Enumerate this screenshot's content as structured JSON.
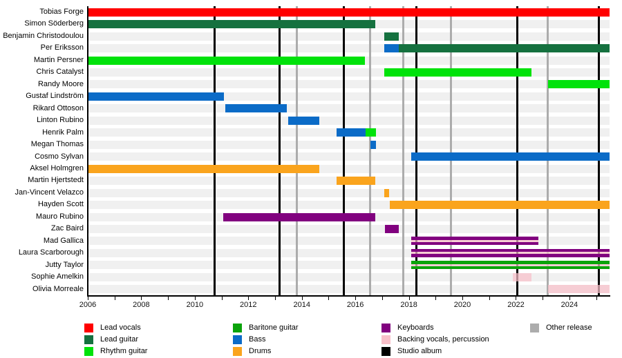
{
  "chart_data": {
    "type": "timeline",
    "title": "",
    "x_domain": [
      2006,
      2025.5
    ],
    "x_tick_years": [
      2006,
      2008,
      2010,
      2012,
      2014,
      2016,
      2018,
      2020,
      2022,
      2024
    ],
    "x_tick_labels": [
      "2006",
      "2008",
      "2010",
      "2012",
      "2014",
      "2016",
      "2018",
      "2020",
      "2022",
      "2024"
    ],
    "minor_tick_step": 1,
    "grid": "off",
    "legend_position": "bottom",
    "colors": {
      "lead_vocals": "#FF0000",
      "lead_guitar": "#15713F",
      "rhythm_guitar": "#00E20B",
      "baritone_guitar": "#0BA30B",
      "bass": "#0B6BC7",
      "drums": "#FAA41D",
      "keyboards": "#81017F",
      "backing": "#F8BFC9",
      "studio_album": "#000000",
      "other_release": "#ACACAC",
      "row_band": "#F0F0F0"
    },
    "members": [
      {
        "name": "Tobias Forge",
        "segments": [
          {
            "role": "lead_vocals",
            "start": 2006,
            "end": 2025.5
          }
        ]
      },
      {
        "name": "Simon Söderberg",
        "segments": [
          {
            "role": "lead_guitar",
            "start": 2006,
            "end": 2016.74
          }
        ]
      },
      {
        "name": "Benjamin Christodoulou",
        "segments": [
          {
            "role": "lead_guitar",
            "start": 2017.08,
            "end": 2017.62
          }
        ]
      },
      {
        "name": "Per Eriksson",
        "segments": [
          {
            "role": "bass",
            "start": 2017.08,
            "end": 2017.62
          },
          {
            "role": "lead_guitar",
            "start": 2017.62,
            "end": 2025.5
          }
        ]
      },
      {
        "name": "Martin Persner",
        "segments": [
          {
            "role": "rhythm_guitar",
            "start": 2006,
            "end": 2016.36
          }
        ]
      },
      {
        "name": "Chris Catalyst",
        "segments": [
          {
            "role": "rhythm_guitar",
            "start": 2017.08,
            "end": 2022.58
          }
        ]
      },
      {
        "name": "Randy Moore",
        "segments": [
          {
            "role": "rhythm_guitar",
            "start": 2023.2,
            "end": 2025.5
          }
        ]
      },
      {
        "name": "Gustaf Lindström",
        "segments": [
          {
            "role": "bass",
            "start": 2006,
            "end": 2011.1
          }
        ]
      },
      {
        "name": "Rikard Ottoson",
        "segments": [
          {
            "role": "bass",
            "start": 2011.15,
            "end": 2013.45
          }
        ]
      },
      {
        "name": "Linton Rubino",
        "segments": [
          {
            "role": "bass",
            "start": 2013.5,
            "end": 2014.65
          }
        ]
      },
      {
        "name": "Henrik Palm",
        "segments": [
          {
            "role": "bass",
            "start": 2015.3,
            "end": 2016.38
          },
          {
            "role": "rhythm_guitar",
            "start": 2016.38,
            "end": 2016.77
          }
        ]
      },
      {
        "name": "Megan Thomas",
        "segments": [
          {
            "role": "bass",
            "start": 2016.56,
            "end": 2016.77
          }
        ]
      },
      {
        "name": "Cosmo Sylvan",
        "segments": [
          {
            "role": "bass",
            "start": 2018.1,
            "end": 2025.5
          }
        ]
      },
      {
        "name": "Aksel Holmgren",
        "segments": [
          {
            "role": "drums",
            "start": 2006,
            "end": 2014.65
          }
        ]
      },
      {
        "name": "Martin Hjertstedt",
        "segments": [
          {
            "role": "drums",
            "start": 2015.3,
            "end": 2016.74
          }
        ]
      },
      {
        "name": "Jan-Vincent Velazco",
        "segments": [
          {
            "role": "drums",
            "start": 2017.08,
            "end": 2017.26
          }
        ]
      },
      {
        "name": "Hayden Scott",
        "segments": [
          {
            "role": "drums",
            "start": 2017.28,
            "end": 2025.5
          }
        ]
      },
      {
        "name": "Mauro Rubino",
        "segments": [
          {
            "role": "keyboards",
            "start": 2011.05,
            "end": 2016.74
          }
        ]
      },
      {
        "name": "Zac Baird",
        "segments": [
          {
            "role": "keyboards",
            "start": 2017.1,
            "end": 2017.62
          }
        ]
      },
      {
        "name": "Mad Gallica",
        "segments": [
          {
            "role": "keyboards",
            "stripe": "backing",
            "start": 2018.1,
            "end": 2022.84
          }
        ]
      },
      {
        "name": "Laura Scarborough",
        "segments": [
          {
            "role": "keyboards",
            "stripe": "backing",
            "start": 2018.1,
            "end": 2025.5
          }
        ]
      },
      {
        "name": "Jutty Taylor",
        "segments": [
          {
            "role": "baritone_guitar",
            "stripe": "backing",
            "start": 2018.1,
            "end": 2025.5
          }
        ]
      },
      {
        "name": "Sophie Amelkin",
        "segments": [
          {
            "role": "backing",
            "start": 2021.88,
            "end": 2022.58
          }
        ]
      },
      {
        "name": "Olivia Morreale",
        "segments": [
          {
            "role": "backing",
            "start": 2023.2,
            "end": 2025.5
          }
        ]
      }
    ],
    "events": {
      "studio_albums": [
        2010.73,
        2013.18,
        2015.56,
        2018.27,
        2022.04,
        2025.11
      ],
      "other_releases": [
        2013.8,
        2016.56,
        2017.8,
        2019.56,
        2023.2
      ]
    },
    "legend_columns": [
      [
        {
          "label": "Lead vocals",
          "role": "lead_vocals"
        },
        {
          "label": "Lead guitar",
          "role": "lead_guitar"
        },
        {
          "label": "Rhythm guitar",
          "role": "rhythm_guitar"
        }
      ],
      [
        {
          "label": "Baritone guitar",
          "role": "baritone_guitar"
        },
        {
          "label": "Bass",
          "role": "bass"
        },
        {
          "label": "Drums",
          "role": "drums"
        }
      ],
      [
        {
          "label": "Keyboards",
          "role": "keyboards"
        },
        {
          "label": "Backing vocals, percussion",
          "role": "backing"
        },
        {
          "label": "Studio album",
          "role": "studio_album"
        }
      ],
      [
        {
          "label": "Other release",
          "role": "other_release"
        }
      ]
    ]
  }
}
